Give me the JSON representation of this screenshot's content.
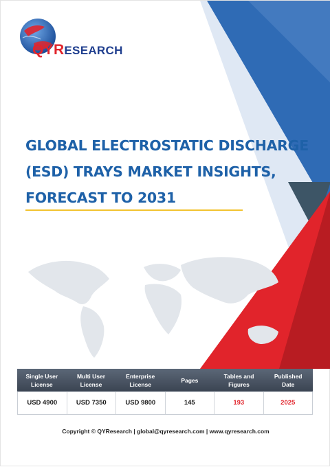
{
  "logo": {
    "brand_prefix": "QYR",
    "brand_suffix": "ESEARCH",
    "icon": "globe-logo-icon"
  },
  "report": {
    "title_lines": [
      "GLOBAL ELECTROSTATIC DISCHARGE",
      "(ESD) TRAYS MARKET INSIGHTS,",
      "FORECAST TO 2031"
    ]
  },
  "colors": {
    "brand_blue": "#1e61a8",
    "brand_red": "#e1242b",
    "accent_yellow": "#f2c32f",
    "header_grey": "#4a5463"
  },
  "info_table": {
    "headers": [
      "Single User\nLicense",
      "Multi User\nLicense",
      "Enterprise\nLicense",
      "Pages",
      "Tables and\nFigures",
      "Published\nDate"
    ],
    "values": [
      "USD 4900",
      "USD 7350",
      "USD 9800",
      "145",
      "193",
      "2025"
    ]
  },
  "footer": {
    "text": "Copyright © QYResearch | global@qyresearch.com | www.qyresearch.com"
  }
}
